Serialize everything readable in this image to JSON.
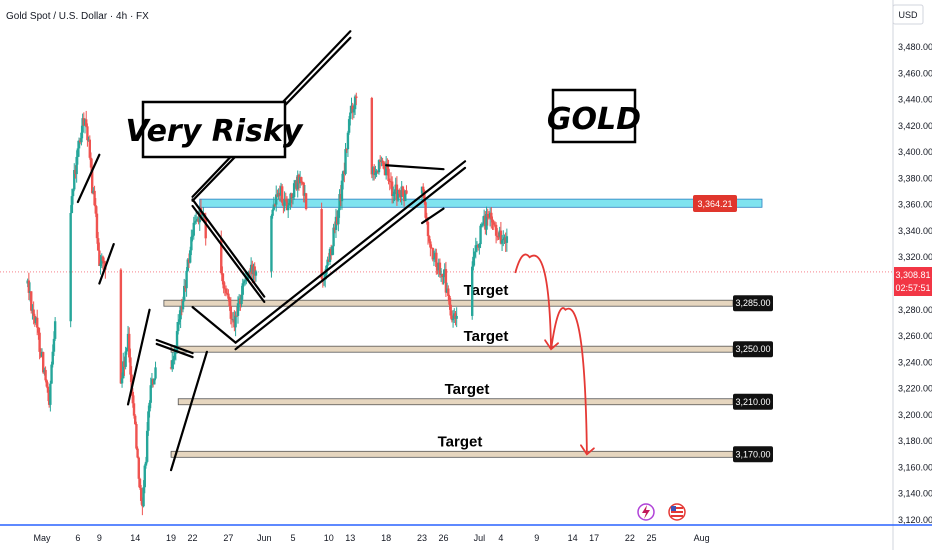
{
  "header": {
    "title": "Gold Spot / U.S. Dollar · 4h · FX",
    "currency": "USD"
  },
  "callouts": {
    "risky": "Very Risky",
    "asset": "GOLD"
  },
  "resistance_label": "3,364.21",
  "last_price": "3,308.81",
  "countdown": "02:57:51",
  "colors": {
    "bull": "#26a69a",
    "bear": "#ef5350",
    "zone": "#7fe3ef",
    "target_zone": "#e6d6bf",
    "arrow": "#e53935",
    "last_price": "#f23645"
  },
  "chart_data": {
    "type": "candlestick",
    "title": "Gold Spot / U.S. Dollar · 4h · FX",
    "ylim": [
      3110,
      3500
    ],
    "y_ticks": [
      3120,
      3140,
      3160,
      3180,
      3200,
      3220,
      3240,
      3260,
      3280,
      3300,
      3320,
      3340,
      3360,
      3380,
      3400,
      3420,
      3440,
      3460,
      3480
    ],
    "y_tick_labels": [
      "3,120.00",
      "3,140.00",
      "3,160.00",
      "3,180.00",
      "3,200.00",
      "3,220.00",
      "3,240.00",
      "3,260.00",
      "3,280.00",
      "3,300.00",
      "3,320.00",
      "3,340.00",
      "3,360.00",
      "3,380.00",
      "3,400.00",
      "3,420.00",
      "3,440.00",
      "3,460.00",
      "3,480.00"
    ],
    "x_labels": [
      {
        "label": "May",
        "date": "2025-05-01"
      },
      {
        "label": "6",
        "date": "2025-05-06"
      },
      {
        "label": "9",
        "date": "2025-05-09"
      },
      {
        "label": "14",
        "date": "2025-05-14"
      },
      {
        "label": "19",
        "date": "2025-05-19"
      },
      {
        "label": "22",
        "date": "2025-05-22"
      },
      {
        "label": "27",
        "date": "2025-05-27"
      },
      {
        "label": "Jun",
        "date": "2025-06-01"
      },
      {
        "label": "5",
        "date": "2025-06-05"
      },
      {
        "label": "10",
        "date": "2025-06-10"
      },
      {
        "label": "13",
        "date": "2025-06-13"
      },
      {
        "label": "18",
        "date": "2025-06-18"
      },
      {
        "label": "23",
        "date": "2025-06-23"
      },
      {
        "label": "26",
        "date": "2025-06-26"
      },
      {
        "label": "Jul",
        "date": "2025-07-01"
      },
      {
        "label": "4",
        "date": "2025-07-04"
      },
      {
        "label": "9",
        "date": "2025-07-09"
      },
      {
        "label": "14",
        "date": "2025-07-14"
      },
      {
        "label": "17",
        "date": "2025-07-17"
      },
      {
        "label": "22",
        "date": "2025-07-22"
      },
      {
        "label": "25",
        "date": "2025-07-25"
      },
      {
        "label": "Aug",
        "date": "2025-08-01"
      }
    ],
    "price_path": [
      {
        "date": "2025-04-29",
        "price": 3300
      },
      {
        "date": "2025-05-01",
        "price": 3245
      },
      {
        "date": "2025-05-02",
        "price": 3205
      },
      {
        "date": "2025-05-03",
        "price": 3290
      },
      {
        "date": "2025-05-05",
        "price": 3360
      },
      {
        "date": "2025-05-06",
        "price": 3400
      },
      {
        "date": "2025-05-07",
        "price": 3430
      },
      {
        "date": "2025-05-08",
        "price": 3375
      },
      {
        "date": "2025-05-09",
        "price": 3320
      },
      {
        "date": "2025-05-11",
        "price": 3300
      },
      {
        "date": "2025-05-12",
        "price": 3225
      },
      {
        "date": "2025-05-13",
        "price": 3255
      },
      {
        "date": "2025-05-14",
        "price": 3190
      },
      {
        "date": "2025-05-15",
        "price": 3125
      },
      {
        "date": "2025-05-16",
        "price": 3215
      },
      {
        "date": "2025-05-17",
        "price": 3235
      },
      {
        "date": "2025-05-19",
        "price": 3230
      },
      {
        "date": "2025-05-21",
        "price": 3300
      },
      {
        "date": "2025-05-22",
        "price": 3340
      },
      {
        "date": "2025-05-23",
        "price": 3355
      },
      {
        "date": "2025-05-25",
        "price": 3320
      },
      {
        "date": "2025-05-27",
        "price": 3285
      },
      {
        "date": "2025-05-28",
        "price": 3270
      },
      {
        "date": "2025-05-29",
        "price": 3300
      },
      {
        "date": "2025-05-31",
        "price": 3315
      },
      {
        "date": "2025-06-01",
        "price": 3340
      },
      {
        "date": "2025-06-03",
        "price": 3375
      },
      {
        "date": "2025-06-04",
        "price": 3360
      },
      {
        "date": "2025-06-06",
        "price": 3380
      },
      {
        "date": "2025-06-08",
        "price": 3330
      },
      {
        "date": "2025-06-09",
        "price": 3300
      },
      {
        "date": "2025-06-10",
        "price": 3320
      },
      {
        "date": "2025-06-11",
        "price": 3345
      },
      {
        "date": "2025-06-12",
        "price": 3380
      },
      {
        "date": "2025-06-13",
        "price": 3430
      },
      {
        "date": "2025-06-14",
        "price": 3445
      },
      {
        "date": "2025-06-15",
        "price": 3420
      },
      {
        "date": "2025-06-16",
        "price": 3390
      },
      {
        "date": "2025-06-18",
        "price": 3385
      },
      {
        "date": "2025-06-19",
        "price": 3370
      },
      {
        "date": "2025-06-21",
        "price": 3365
      },
      {
        "date": "2025-06-22",
        "price": 3360
      },
      {
        "date": "2025-06-23",
        "price": 3375
      },
      {
        "date": "2025-06-24",
        "price": 3330
      },
      {
        "date": "2025-06-25",
        "price": 3315
      },
      {
        "date": "2025-06-26",
        "price": 3310
      },
      {
        "date": "2025-06-27",
        "price": 3275
      },
      {
        "date": "2025-06-28",
        "price": 3270
      },
      {
        "date": "2025-06-29",
        "price": 3300
      },
      {
        "date": "2025-06-30",
        "price": 3310
      },
      {
        "date": "2025-07-01",
        "price": 3335
      },
      {
        "date": "2025-07-02",
        "price": 3350
      },
      {
        "date": "2025-07-03",
        "price": 3345
      },
      {
        "date": "2025-07-04",
        "price": 3335
      },
      {
        "date": "2025-07-05",
        "price": 3330
      },
      {
        "date": "2025-07-06",
        "price": 3308
      }
    ],
    "resistance_zone": {
      "from": 3358,
      "to": 3364.21,
      "label": "3,364.21"
    },
    "targets": [
      {
        "label": "Target",
        "price": 3285,
        "price_label": "3,285.00"
      },
      {
        "label": "Target",
        "price": 3250,
        "price_label": "3,250.00"
      },
      {
        "label": "Target",
        "price": 3210,
        "price_label": "3,210.00"
      },
      {
        "label": "Target",
        "price": 3170,
        "price_label": "3,170.00"
      }
    ],
    "projection": [
      {
        "date": "2025-07-06",
        "price": 3308
      },
      {
        "date": "2025-07-08",
        "price": 3320
      },
      {
        "date": "2025-07-11",
        "price": 3250
      },
      {
        "date": "2025-07-13",
        "price": 3280
      },
      {
        "date": "2025-07-16",
        "price": 3170
      }
    ],
    "last_price": 3308.81,
    "grid": false
  }
}
